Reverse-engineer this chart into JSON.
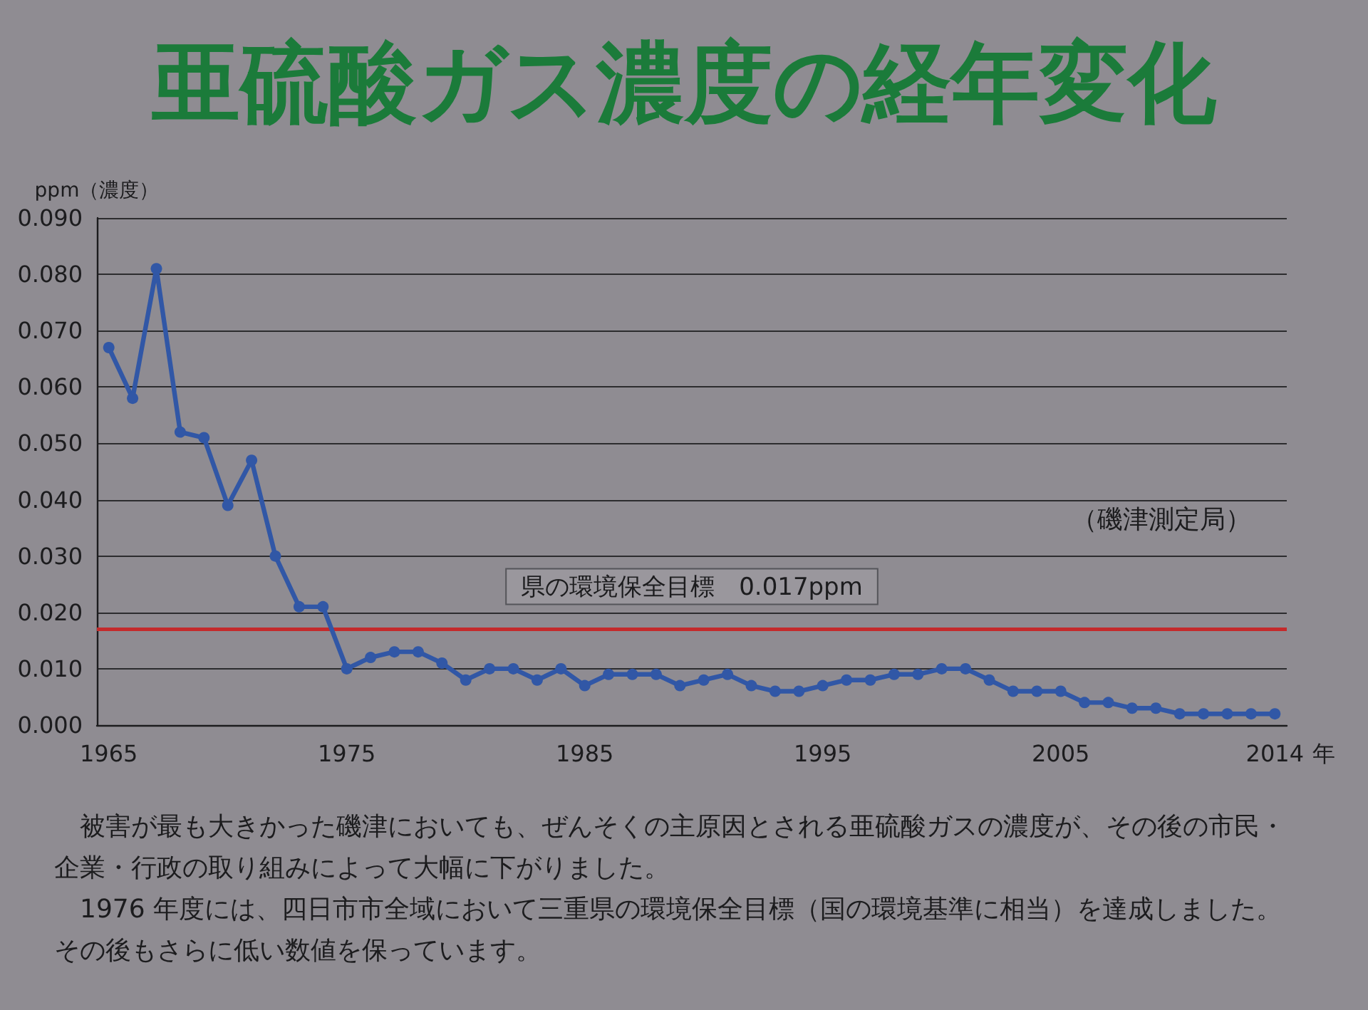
{
  "chart_data": {
    "type": "line",
    "title": "亜硫酸ガス濃度の経年変化",
    "ylabel": "ppm（濃度）",
    "xlabel": "年",
    "categories": [
      "1965",
      null,
      null,
      null,
      null,
      null,
      null,
      null,
      null,
      null,
      "1975",
      null,
      null,
      null,
      null,
      null,
      null,
      null,
      null,
      null,
      "1985",
      null,
      null,
      null,
      null,
      null,
      null,
      null,
      null,
      null,
      "1995",
      null,
      null,
      null,
      null,
      null,
      null,
      null,
      null,
      null,
      "2005",
      null,
      null,
      null,
      null,
      null,
      null,
      null,
      null,
      "2014"
    ],
    "series": [
      {
        "color": "#3157a6",
        "values": [
          0.067,
          0.058,
          0.081,
          0.052,
          0.051,
          0.039,
          0.047,
          0.03,
          0.021,
          0.021,
          0.01,
          0.012,
          0.013,
          0.013,
          0.011,
          0.008,
          0.01,
          0.01,
          0.008,
          0.01,
          0.007,
          0.009,
          0.009,
          0.009,
          0.007,
          0.008,
          0.009,
          0.007,
          0.006,
          0.006,
          0.007,
          0.008,
          0.008,
          0.009,
          0.009,
          0.01,
          0.01,
          0.008,
          0.006,
          0.006,
          0.006,
          0.004,
          0.004,
          0.003,
          0.003,
          0.002,
          0.002,
          0.002,
          0.002,
          0.002
        ]
      }
    ],
    "ylim": [
      0,
      0.09
    ],
    "yticks": [
      {
        "value": 0,
        "label": "0.000"
      },
      {
        "value": 0.01,
        "label": "0.010"
      },
      {
        "value": 0.02,
        "label": "0.020"
      },
      {
        "value": 0.03,
        "label": "0.030"
      },
      {
        "value": 0.04,
        "label": "0.040"
      },
      {
        "value": 0.05,
        "label": "0.050"
      },
      {
        "value": 0.06,
        "label": "0.060"
      },
      {
        "value": 0.07,
        "label": "0.070"
      },
      {
        "value": 0.08,
        "label": "0.080"
      },
      {
        "value": 0.09,
        "label": "0.090"
      }
    ],
    "grid": "y",
    "marker": "circle",
    "line_style": "solid",
    "ref_lines": [
      {
        "axis": "y",
        "value": 0.017,
        "label": "県の環境保全目標　0.017ppm",
        "color": "#c42a2b"
      }
    ],
    "annotations": [
      "（磯津測定局）",
      "被害が最も大きかった磯津においても、ぜんそくの主原因とされる亜硫酸ガスの濃度が、その後の市民・企業・行政の取り組みによって大幅に下がりました。",
      "1976 年度には、四日市市全域において三重県の環境保全目標（国の環境基準に相当）を達成しました。その後もさらに低い数値を保っています。"
    ]
  }
}
